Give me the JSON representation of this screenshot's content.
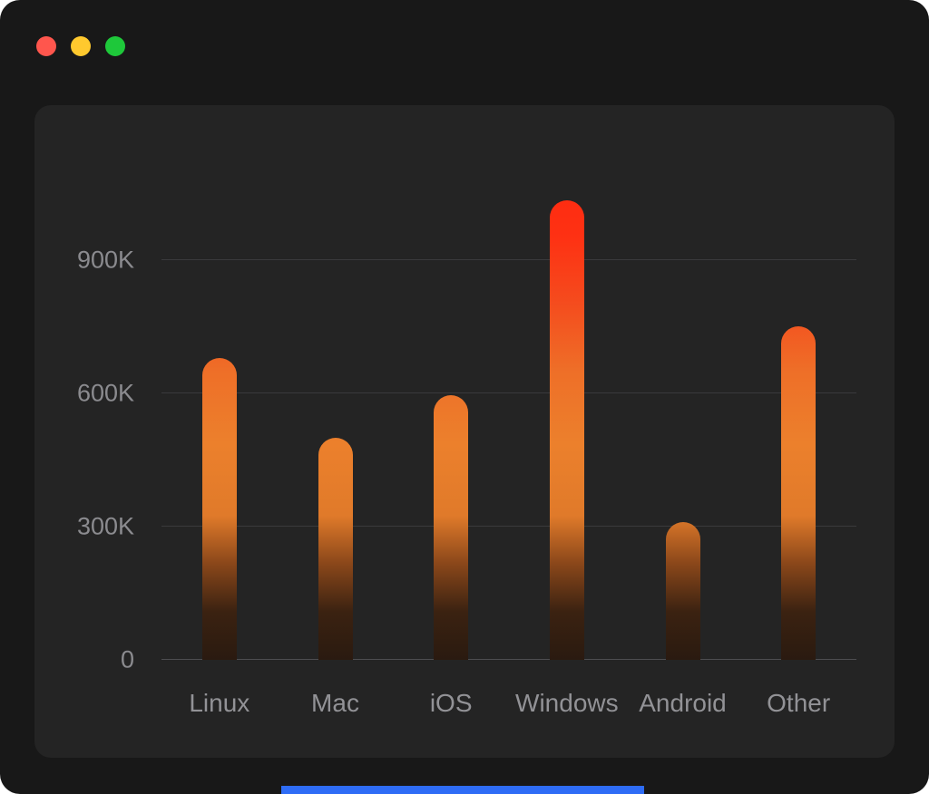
{
  "window": {
    "traffic_lights": [
      {
        "name": "close-button",
        "color": "#ff564d"
      },
      {
        "name": "minimize-button",
        "color": "#ffc92e"
      },
      {
        "name": "maximize-button",
        "color": "#1ec83a"
      }
    ]
  },
  "chart_data": {
    "type": "bar",
    "categories": [
      "Linux",
      "Mac",
      "iOS",
      "Windows",
      "Android",
      "Other"
    ],
    "values": [
      680000,
      500000,
      595000,
      1035000,
      310000,
      750000
    ],
    "title": "",
    "xlabel": "",
    "ylabel": "",
    "ylim": [
      0,
      1100000
    ],
    "yticks": [
      {
        "value": 0,
        "label": "0"
      },
      {
        "value": 300000,
        "label": "300K"
      },
      {
        "value": 600000,
        "label": "600K"
      },
      {
        "value": 900000,
        "label": "900K"
      }
    ],
    "grid": true,
    "legend_position": "none",
    "bar_gradient_top_to_bottom": [
      "#ff2a10",
      "#fe3113",
      "#f54a1d",
      "#ee6f28",
      "#ec802c",
      "#e07a2a",
      "#8a471a",
      "#3b2211",
      "#2a1a10"
    ]
  },
  "accents": {
    "bottom_bar_color": "#2e6cf6",
    "panel_background": "#242424",
    "page_background": "#181818",
    "gridline_color": "#3a3a3c"
  }
}
